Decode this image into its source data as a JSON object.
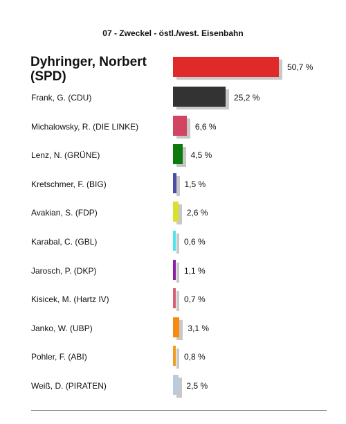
{
  "chart_data": {
    "type": "bar",
    "orientation": "horizontal",
    "title": "07 - Zweckel - östl./west. Eisenbahn",
    "categories": [
      "Dyhringer, Norbert (SPD)",
      "Frank, G. (CDU)",
      "Michalowsky, R. (DIE LINKE)",
      "Lenz, N. (GRÜNE)",
      "Kretschmer, F. (BIG)",
      "Avakian, S. (FDP)",
      "Karabal, C. (GBL)",
      "Jarosch, P. (DKP)",
      "Kisicek, M. (Hartz IV)",
      "Janko, W. (UBP)",
      "Pohler, F. (ABI)",
      "Weiß, D. (PIRATEN)"
    ],
    "values": [
      50.7,
      25.2,
      6.6,
      4.5,
      1.5,
      2.6,
      0.6,
      1.1,
      0.7,
      3.1,
      0.8,
      2.5
    ],
    "value_labels": [
      "50,7 %",
      "25,2 %",
      "6,6 %",
      "4,5 %",
      "1,5 %",
      "2,6 %",
      "0,6 %",
      "1,1 %",
      "0,7 %",
      "3,1 %",
      "0,8 %",
      "2,5 %"
    ],
    "colors": [
      "#e02a2a",
      "#333333",
      "#d24462",
      "#0d7a0d",
      "#4a4fa6",
      "#dde02a",
      "#4ee6ee",
      "#8b1fa6",
      "#d86070",
      "#f78a10",
      "#f29a20",
      "#b9cbdc"
    ],
    "highlight_first": true,
    "xlim": [
      0,
      50.7
    ],
    "grid": false,
    "legend": "none"
  }
}
